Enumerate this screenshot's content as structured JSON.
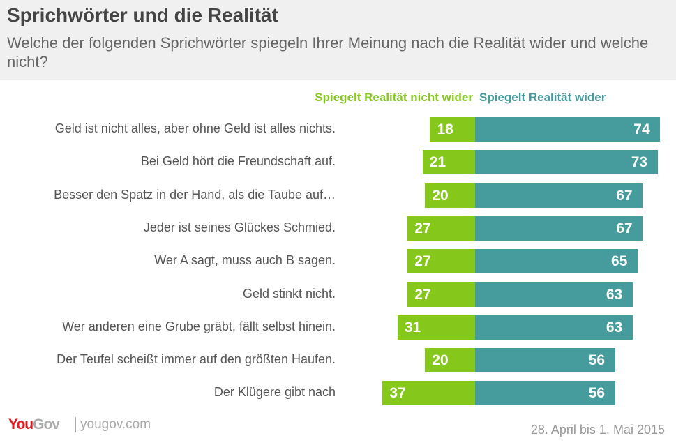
{
  "title": "Sprichwörter und die Realität",
  "subtitle": "Welche der folgenden Sprichwörter spiegeln Ihrer Meinung nach die Realität wider und welche nicht?",
  "chart_data": {
    "type": "bar",
    "orientation": "horizontal-diverging",
    "categories": [
      "Geld ist nicht alles, aber ohne Geld ist alles nichts.",
      "Bei Geld hört die Freundschaft auf.",
      "Besser den Spatz in der Hand, als die Taube auf…",
      "Jeder ist seines Glückes Schmied.",
      "Wer A sagt, muss auch B sagen.",
      "Geld stinkt nicht.",
      "Wer anderen eine Grube gräbt, fällt selbst hinein.",
      "Der Teufel scheißt immer auf den größten Haufen.",
      "Der Klügere gibt nach"
    ],
    "series": [
      {
        "name": "Spiegelt Realität nicht wider",
        "color": "#85c81b",
        "values": [
          18,
          21,
          20,
          27,
          27,
          27,
          31,
          20,
          37
        ]
      },
      {
        "name": "Spiegelt Realität wider",
        "color": "#469c9d",
        "values": [
          74,
          73,
          67,
          67,
          65,
          63,
          63,
          56,
          56
        ]
      }
    ],
    "legend": "top"
  },
  "footer": {
    "logo": "YouGov",
    "site": "yougov.com",
    "date": "28. April bis 1. Mai 2015"
  }
}
